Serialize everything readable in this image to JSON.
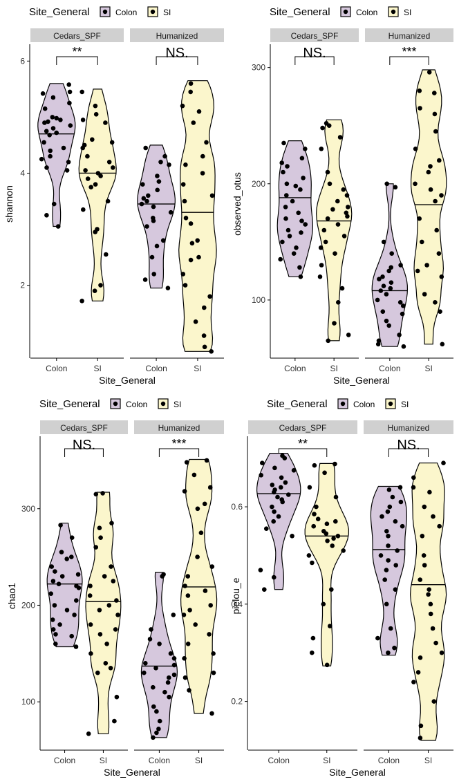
{
  "colors": {
    "Colon": "#d6c8dd",
    "SI": "#fbf6cc",
    "strip": "#d0d0d0",
    "outline": "#000000"
  },
  "legend": {
    "title": "Site_General",
    "items": [
      "Colon",
      "SI"
    ]
  },
  "chart_data": [
    {
      "type": "violin",
      "title": "",
      "xlabel": "Site_General",
      "ylabel": "shannon",
      "ylim": [
        0.7,
        6.3
      ],
      "yticks": [
        2,
        4,
        6
      ],
      "ytick_labels": [
        "2",
        "4",
        "6"
      ],
      "categories": [
        "Colon",
        "SI"
      ],
      "facets": [
        {
          "name": "Cedars_SPF",
          "significance": "**",
          "groups": [
            {
              "name": "Colon",
              "median": 4.7,
              "min": 3.05,
              "max": 5.6,
              "points": [
                5.58,
                5.45,
                5.42,
                5.35,
                5.25,
                5.15,
                5.0,
                4.98,
                4.95,
                4.92,
                4.9,
                4.85,
                4.8,
                4.75,
                4.72,
                4.68,
                4.55,
                4.45,
                4.4,
                4.3,
                4.25,
                4.2,
                4.1,
                4.05,
                3.45,
                3.25,
                3.05
              ]
            },
            {
              "name": "SI",
              "median": 4.0,
              "min": 1.72,
              "max": 5.5,
              "points": [
                5.45,
                5.2,
                5.05,
                4.95,
                4.9,
                4.6,
                4.55,
                4.5,
                4.45,
                4.3,
                4.2,
                4.1,
                4.05,
                4.0,
                3.95,
                3.9,
                3.8,
                3.75,
                3.5,
                3.35,
                3.0,
                2.95,
                2.55,
                2.0,
                1.9,
                1.72
              ]
            }
          ]
        },
        {
          "name": "Humanized",
          "significance": "NS.",
          "groups": [
            {
              "name": "Colon",
              "median": 3.45,
              "min": 1.95,
              "max": 4.5,
              "points": [
                4.45,
                4.3,
                4.2,
                4.15,
                3.95,
                3.85,
                3.8,
                3.7,
                3.6,
                3.55,
                3.5,
                3.45,
                3.4,
                3.3,
                3.2,
                3.15,
                3.05,
                2.8,
                2.7,
                2.5,
                2.2,
                2.1,
                1.95
              ]
            },
            {
              "name": "SI",
              "median": 3.3,
              "min": 0.82,
              "max": 5.65,
              "points": [
                5.6,
                5.45,
                5.2,
                5.1,
                4.9,
                4.55,
                4.3,
                4.15,
                4.0,
                3.8,
                3.6,
                3.5,
                3.2,
                3.1,
                2.8,
                2.75,
                2.5,
                2.45,
                2.2,
                2.0,
                1.8,
                1.6,
                1.35,
                1.1,
                0.9,
                0.82
              ]
            }
          ]
        }
      ]
    },
    {
      "type": "violin",
      "title": "",
      "xlabel": "Site_General",
      "ylabel": "observed_otus",
      "ylim": [
        50,
        320
      ],
      "yticks": [
        100,
        200,
        300
      ],
      "ytick_labels": [
        "100",
        "200",
        "300"
      ],
      "categories": [
        "Colon",
        "SI"
      ],
      "facets": [
        {
          "name": "Cedars_SPF",
          "significance": "NS.",
          "groups": [
            {
              "name": "Colon",
              "median": 188,
              "min": 120,
              "max": 237,
              "points": [
                235,
                230,
                222,
                218,
                215,
                210,
                205,
                200,
                198,
                195,
                190,
                185,
                180,
                175,
                170,
                168,
                165,
                160,
                158,
                155,
                150,
                145,
                140,
                135,
                128,
                120
              ]
            },
            {
              "name": "SI",
              "median": 168,
              "min": 65,
              "max": 255,
              "points": [
                252,
                250,
                248,
                240,
                230,
                210,
                200,
                195,
                190,
                185,
                180,
                178,
                175,
                172,
                170,
                165,
                160,
                155,
                150,
                145,
                140,
                130,
                120,
                110,
                98,
                80,
                70,
                65
              ]
            }
          ]
        },
        {
          "name": "Humanized",
          "significance": "***",
          "groups": [
            {
              "name": "Colon",
              "median": 108,
              "min": 60,
              "max": 200,
              "points": [
                200,
                197,
                150,
                140,
                130,
                128,
                125,
                120,
                118,
                115,
                112,
                110,
                108,
                105,
                100,
                98,
                95,
                90,
                88,
                82,
                78,
                70,
                65,
                62,
                60
              ]
            },
            {
              "name": "SI",
              "median": 182,
              "min": 62,
              "max": 298,
              "points": [
                296,
                280,
                278,
                265,
                260,
                245,
                230,
                220,
                215,
                210,
                200,
                195,
                190,
                185,
                170,
                160,
                150,
                140,
                130,
                125,
                120,
                105,
                98,
                90,
                62
              ]
            }
          ]
        }
      ]
    },
    {
      "type": "violin",
      "title": "",
      "xlabel": "Site_General",
      "ylabel": "chao1",
      "ylim": [
        50,
        375
      ],
      "yticks": [
        100,
        200,
        300
      ],
      "ytick_labels": [
        "100",
        "200",
        "300"
      ],
      "categories": [
        "Colon",
        "SI"
      ],
      "facets": [
        {
          "name": "Cedars_SPF",
          "significance": "NS.",
          "groups": [
            {
              "name": "Colon",
              "median": 222,
              "min": 157,
              "max": 285,
              "points": [
                283,
                270,
                255,
                250,
                248,
                240,
                235,
                232,
                230,
                225,
                222,
                220,
                218,
                212,
                205,
                200,
                195,
                190,
                185,
                180,
                175,
                170,
                168,
                160,
                157
              ]
            },
            {
              "name": "SI",
              "median": 204,
              "min": 67,
              "max": 317,
              "points": [
                316,
                315,
                285,
                280,
                270,
                260,
                240,
                230,
                225,
                220,
                210,
                205,
                200,
                195,
                190,
                180,
                175,
                170,
                160,
                150,
                140,
                135,
                130,
                105,
                80,
                67
              ]
            }
          ]
        },
        {
          "name": "Humanized",
          "significance": "***",
          "groups": [
            {
              "name": "Colon",
              "median": 137,
              "min": 63,
              "max": 234,
              "points": [
                232,
                230,
                190,
                175,
                165,
                160,
                150,
                145,
                140,
                138,
                135,
                130,
                128,
                125,
                120,
                115,
                110,
                105,
                95,
                90,
                80,
                72,
                68,
                63
              ]
            },
            {
              "name": "SI",
              "median": 219,
              "min": 88,
              "max": 351,
              "points": [
                350,
                348,
                335,
                322,
                318,
                305,
                300,
                275,
                250,
                240,
                230,
                220,
                215,
                210,
                200,
                195,
                190,
                180,
                170,
                160,
                150,
                145,
                130,
                125,
                112,
                88
              ]
            }
          ]
        }
      ]
    },
    {
      "type": "violin",
      "title": "",
      "xlabel": "Site_General",
      "ylabel": "pielou_e",
      "ylim": [
        0.1,
        0.745
      ],
      "yticks": [
        0.2,
        0.4,
        0.6
      ],
      "ytick_labels": [
        "0.2",
        "0.4",
        "0.6"
      ],
      "categories": [
        "Colon",
        "SI"
      ],
      "facets": [
        {
          "name": "Cedars_SPF",
          "significance": "**",
          "groups": [
            {
              "name": "Colon",
              "median": 0.627,
              "min": 0.43,
              "max": 0.71,
              "points": [
                0.705,
                0.7,
                0.69,
                0.68,
                0.675,
                0.665,
                0.66,
                0.65,
                0.645,
                0.64,
                0.635,
                0.63,
                0.625,
                0.62,
                0.615,
                0.61,
                0.6,
                0.59,
                0.58,
                0.57,
                0.555,
                0.54,
                0.47,
                0.455,
                0.43
              ]
            },
            {
              "name": "SI",
              "median": 0.54,
              "min": 0.273,
              "max": 0.689,
              "points": [
                0.688,
                0.685,
                0.67,
                0.64,
                0.62,
                0.6,
                0.585,
                0.575,
                0.57,
                0.565,
                0.56,
                0.55,
                0.545,
                0.54,
                0.535,
                0.53,
                0.52,
                0.51,
                0.5,
                0.485,
                0.43,
                0.4,
                0.355,
                0.33,
                0.3,
                0.275
              ]
            }
          ]
        },
        {
          "name": "Humanized",
          "significance": "NS.",
          "groups": [
            {
              "name": "Colon",
              "median": 0.512,
              "min": 0.295,
              "max": 0.642,
              "points": [
                0.64,
                0.635,
                0.62,
                0.61,
                0.6,
                0.59,
                0.58,
                0.57,
                0.56,
                0.55,
                0.54,
                0.52,
                0.51,
                0.5,
                0.49,
                0.48,
                0.47,
                0.45,
                0.43,
                0.4,
                0.35,
                0.33,
                0.31,
                0.3
              ]
            },
            {
              "name": "SI",
              "median": 0.44,
              "min": 0.12,
              "max": 0.69,
              "points": [
                0.69,
                0.66,
                0.64,
                0.63,
                0.6,
                0.58,
                0.56,
                0.54,
                0.5,
                0.48,
                0.45,
                0.43,
                0.42,
                0.4,
                0.38,
                0.35,
                0.32,
                0.3,
                0.29,
                0.26,
                0.24,
                0.2,
                0.15,
                0.125
              ]
            }
          ]
        }
      ]
    }
  ]
}
